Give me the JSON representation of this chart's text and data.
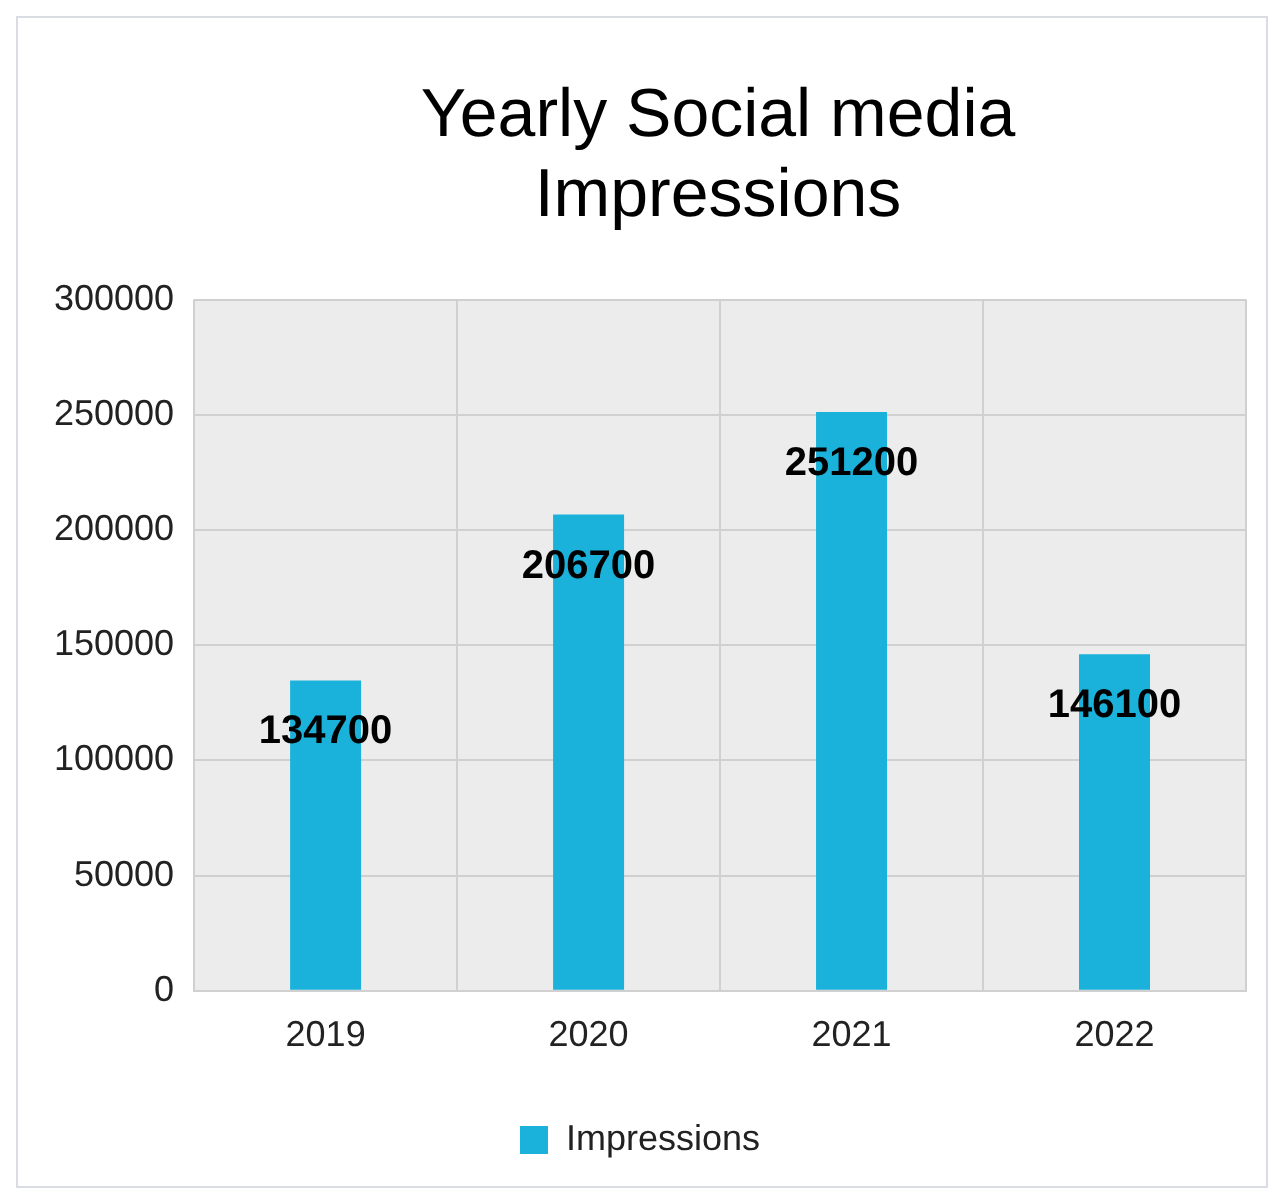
{
  "chart_data": {
    "type": "bar",
    "title": "Yearly Social media Impressions",
    "categories": [
      "2019",
      "2020",
      "2021",
      "2022"
    ],
    "series": [
      {
        "name": "Impressions",
        "color": "#1ab2da",
        "values": [
          134700,
          206700,
          251200,
          146100
        ]
      }
    ],
    "ylim": [
      0,
      300000
    ],
    "yticks": [
      0,
      50000,
      100000,
      150000,
      200000,
      250000,
      300000
    ],
    "grid": true,
    "legend": "bottom",
    "data_labels": true
  }
}
